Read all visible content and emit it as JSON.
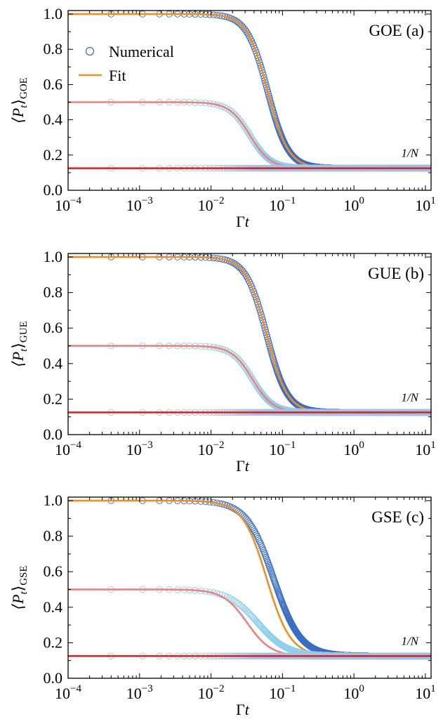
{
  "figure": {
    "legend": {
      "numerical": "Numerical",
      "fit": "Fit"
    }
  },
  "chart_data": [
    {
      "type": "scatter",
      "panel_label": "GOE (a)",
      "xlabel": "Γt",
      "ylabel": "⟨P_t⟩_GOE",
      "ylabel_main": "⟨P",
      "ylabel_sub_t": "t",
      "ylabel_close": "⟩",
      "ylabel_sub": "GOE",
      "x_scale": "log",
      "xlim": [
        0.0001,
        12
      ],
      "ylim": [
        0.0,
        1.02
      ],
      "x_ticks": [
        {
          "value": 0.0001,
          "base": "10",
          "exp": "−4"
        },
        {
          "value": 0.001,
          "base": "10",
          "exp": "−3"
        },
        {
          "value": 0.01,
          "base": "10",
          "exp": "−2"
        },
        {
          "value": 0.1,
          "base": "10",
          "exp": "−1"
        },
        {
          "value": 1,
          "base": "10",
          "exp": "0"
        },
        {
          "value": 10,
          "base": "10",
          "exp": "1"
        }
      ],
      "y_ticks": [
        "0.0",
        "0.2",
        "0.4",
        "0.6",
        "0.8",
        "1.0"
      ],
      "annotation": "1/N",
      "legend_shown": true,
      "legend_position": "upper-left",
      "series": [
        {
          "name": "Numerical",
          "kind": "markers",
          "color": "#3a6fc4",
          "p0": 1.0,
          "pinf": 0.125,
          "tau": 0.062,
          "n": 3
        },
        {
          "name": "Fit",
          "kind": "line",
          "color": "#f28e1c",
          "p0": 1.0,
          "pinf": 0.125,
          "tau": 0.062,
          "n": 3
        },
        {
          "kind": "markers",
          "color": "#8fd0ec",
          "p0": 0.5,
          "pinf": 0.125,
          "tau": 0.035,
          "n": 3
        },
        {
          "kind": "line",
          "color": "#f08080",
          "p0": 0.5,
          "pinf": 0.125,
          "tau": 0.035,
          "n": 3
        },
        {
          "kind": "markers",
          "color": "#9fc6e6",
          "p0": 0.125,
          "pinf": 0.125,
          "tau": 0.05,
          "n": 3
        },
        {
          "kind": "line",
          "color": "#e41a1c",
          "p0": 0.125,
          "pinf": 0.125,
          "tau": 0.05,
          "n": 3
        }
      ]
    },
    {
      "type": "scatter",
      "panel_label": "GUE (b)",
      "xlabel": "Γt",
      "ylabel": "⟨P_t⟩_GUE",
      "ylabel_main": "⟨P",
      "ylabel_sub_t": "t",
      "ylabel_close": "⟩",
      "ylabel_sub": "GUE",
      "x_scale": "log",
      "xlim": [
        0.0001,
        12
      ],
      "ylim": [
        0.0,
        1.02
      ],
      "x_ticks": [
        {
          "value": 0.0001,
          "base": "10",
          "exp": "−4"
        },
        {
          "value": 0.001,
          "base": "10",
          "exp": "−3"
        },
        {
          "value": 0.01,
          "base": "10",
          "exp": "−2"
        },
        {
          "value": 0.1,
          "base": "10",
          "exp": "−1"
        },
        {
          "value": 1,
          "base": "10",
          "exp": "0"
        },
        {
          "value": 10,
          "base": "10",
          "exp": "1"
        }
      ],
      "y_ticks": [
        "0.0",
        "0.2",
        "0.4",
        "0.6",
        "0.8",
        "1.0"
      ],
      "annotation": "1/N",
      "legend_shown": false,
      "series": [
        {
          "kind": "markers",
          "color": "#3a6fc4",
          "p0": 1.0,
          "pinf": 0.125,
          "tau": 0.06,
          "n": 3
        },
        {
          "kind": "line",
          "color": "#f28e1c",
          "p0": 1.0,
          "pinf": 0.125,
          "tau": 0.06,
          "n": 3
        },
        {
          "kind": "markers",
          "color": "#8fd0ec",
          "p0": 0.5,
          "pinf": 0.125,
          "tau": 0.038,
          "n": 3
        },
        {
          "kind": "line",
          "color": "#f08080",
          "p0": 0.5,
          "pinf": 0.125,
          "tau": 0.038,
          "n": 3
        },
        {
          "kind": "markers",
          "color": "#9fc6e6",
          "p0": 0.125,
          "pinf": 0.125,
          "tau": 0.05,
          "n": 3
        },
        {
          "kind": "line",
          "color": "#e41a1c",
          "p0": 0.125,
          "pinf": 0.125,
          "tau": 0.05,
          "n": 3
        }
      ]
    },
    {
      "type": "scatter",
      "panel_label": "GSE (c)",
      "xlabel": "Γt",
      "ylabel": "⟨P_t⟩_GSE",
      "ylabel_main": "⟨P",
      "ylabel_sub_t": "t",
      "ylabel_close": "⟩",
      "ylabel_sub": "GSE",
      "x_scale": "log",
      "xlim": [
        0.0001,
        12
      ],
      "ylim": [
        0.0,
        1.02
      ],
      "x_ticks": [
        {
          "value": 0.0001,
          "base": "10",
          "exp": "−4"
        },
        {
          "value": 0.001,
          "base": "10",
          "exp": "−3"
        },
        {
          "value": 0.01,
          "base": "10",
          "exp": "−2"
        },
        {
          "value": 0.1,
          "base": "10",
          "exp": "−1"
        },
        {
          "value": 1,
          "base": "10",
          "exp": "0"
        },
        {
          "value": 10,
          "base": "10",
          "exp": "1"
        }
      ],
      "y_ticks": [
        "0.0",
        "0.2",
        "0.4",
        "0.6",
        "0.8",
        "1.0"
      ],
      "annotation": "1/N",
      "legend_shown": false,
      "series": [
        {
          "kind": "markers",
          "color": "#3a6fc4",
          "p0": 1.0,
          "pinf": 0.125,
          "tau": 0.075,
          "n": 2.3
        },
        {
          "kind": "line",
          "color": "#f28e1c",
          "p0": 1.0,
          "pinf": 0.125,
          "tau": 0.06,
          "n": 2.6
        },
        {
          "kind": "markers",
          "color": "#8fd0ec",
          "p0": 0.5,
          "pinf": 0.125,
          "tau": 0.045,
          "n": 2.1
        },
        {
          "kind": "line",
          "color": "#f08080",
          "p0": 0.5,
          "pinf": 0.125,
          "tau": 0.032,
          "n": 2.6
        },
        {
          "kind": "markers",
          "color": "#9fc6e6",
          "p0": 0.125,
          "pinf": 0.125,
          "tau": 0.05,
          "n": 3
        },
        {
          "kind": "line",
          "color": "#e41a1c",
          "p0": 0.125,
          "pinf": 0.125,
          "tau": 0.05,
          "n": 3
        }
      ]
    }
  ]
}
